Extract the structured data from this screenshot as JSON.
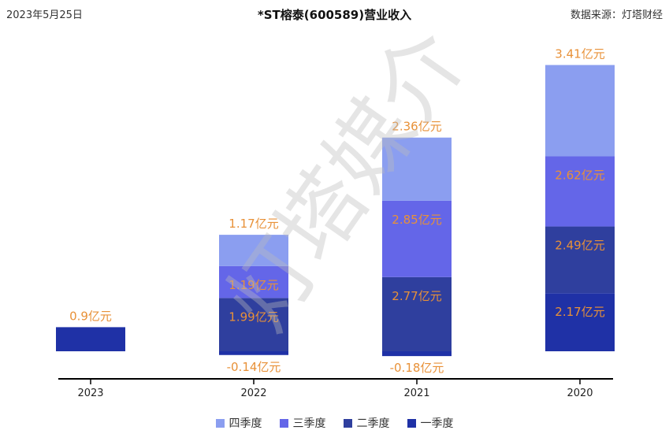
{
  "header": {
    "date": "2023年5月25日",
    "title": "*ST榕泰(600589)营业收入",
    "source": "数据来源：灯塔财经"
  },
  "watermark": "灯塔媒介",
  "colors": {
    "q1": "#1f31a6",
    "q2": "#2f3f9e",
    "q3": "#6466e8",
    "q4": "#8b9ef0",
    "label": "#e89138",
    "axis": "#000000"
  },
  "chart_data": {
    "type": "bar",
    "stacked": true,
    "categories": [
      "2023",
      "2022",
      "2021",
      "2020"
    ],
    "unit": "亿元",
    "series": [
      {
        "name": "一季度",
        "values": [
          0.9,
          -0.14,
          -0.18,
          2.17
        ],
        "labels": [
          "0.9亿元",
          "-0.14亿元",
          "-0.18亿元",
          "2.17亿元"
        ]
      },
      {
        "name": "二季度",
        "values": [
          null,
          1.99,
          2.77,
          2.49
        ],
        "labels": [
          "",
          "1.99亿元",
          "2.77亿元",
          "2.49亿元"
        ]
      },
      {
        "name": "三季度",
        "values": [
          null,
          1.19,
          2.85,
          2.62
        ],
        "labels": [
          "",
          "1.19亿元",
          "2.85亿元",
          "2.62亿元"
        ]
      },
      {
        "name": "四季度",
        "values": [
          null,
          1.17,
          2.36,
          3.41
        ],
        "labels": [
          "",
          "1.17亿元",
          "2.36亿元",
          "3.41亿元"
        ]
      }
    ],
    "legend_position": "bottom",
    "grid": false
  }
}
